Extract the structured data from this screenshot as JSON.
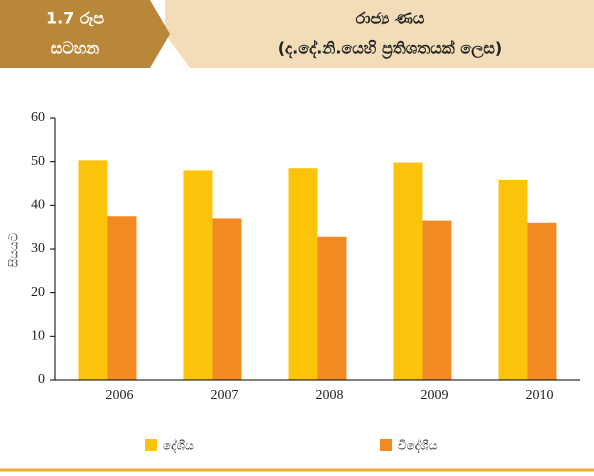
{
  "figure_label": [
    "1.7 රූප",
    "සටහන"
  ],
  "chart_data": {
    "type": "bar",
    "title": "රාජ්‍ය ණය",
    "subtitle": "(ද.දේ.නි.යෙහි ප්‍රතිශතයක් ලෙස)",
    "y_label": "සියයට",
    "categories": [
      "2006",
      "2007",
      "2008",
      "2009",
      "2010"
    ],
    "series": [
      {
        "name": "දේශීය",
        "color": "#fcc30b",
        "values": [
          50.3,
          48.0,
          48.5,
          49.8,
          45.8
        ]
      },
      {
        "name": "විදේශීය",
        "color": "#f28a24",
        "values": [
          37.5,
          37.0,
          32.8,
          36.5,
          36.0
        ]
      }
    ],
    "ylim": [
      0,
      60
    ],
    "yticks": [
      0,
      10,
      20,
      30,
      40,
      50,
      60
    ],
    "grid": false,
    "legend": "bottom"
  }
}
